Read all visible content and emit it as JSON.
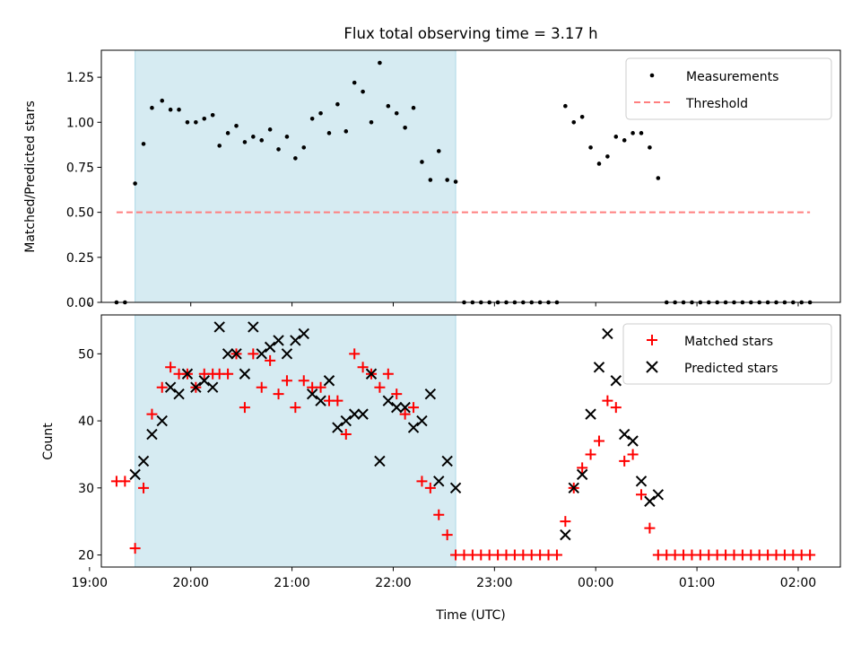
{
  "figure": {
    "title": "Flux total observing time = 3.17 h",
    "xlabel": "Time (UTC)"
  },
  "colors": {
    "span": "#add8e6",
    "measurement": "#000000",
    "threshold": "#ff7f7f",
    "matched": "#ff0000",
    "predicted": "#000000"
  },
  "chart_data": [
    {
      "type": "scatter",
      "ylabel": "Matched/Predicted stars",
      "xlim": [
        "19:07",
        "02:25"
      ],
      "ylim": [
        0,
        1.4
      ],
      "x_ticks": [
        "19:00",
        "20:00",
        "21:00",
        "22:00",
        "23:00",
        "00:00",
        "01:00",
        "02:00"
      ],
      "y_ticks": [
        "0.00",
        "0.25",
        "0.50",
        "0.75",
        "1.00",
        "1.25"
      ],
      "highlight_span": [
        "19:27",
        "22:37"
      ],
      "legend_position": "upper right",
      "series": [
        {
          "name": "Measurements",
          "marker": "dot",
          "points": [
            [
              "19:16",
              0
            ],
            [
              "19:21",
              0
            ],
            [
              "19:27",
              0.66
            ],
            [
              "19:32",
              0.88
            ],
            [
              "19:37",
              1.08
            ],
            [
              "19:43",
              1.12
            ],
            [
              "19:48",
              1.07
            ],
            [
              "19:53",
              1.07
            ],
            [
              "19:58",
              1.0
            ],
            [
              "20:03",
              1.0
            ],
            [
              "20:08",
              1.02
            ],
            [
              "20:13",
              1.04
            ],
            [
              "20:17",
              0.87
            ],
            [
              "20:22",
              0.94
            ],
            [
              "20:27",
              0.98
            ],
            [
              "20:32",
              0.89
            ],
            [
              "20:37",
              0.92
            ],
            [
              "20:42",
              0.9
            ],
            [
              "20:47",
              0.96
            ],
            [
              "20:52",
              0.85
            ],
            [
              "20:57",
              0.92
            ],
            [
              "21:02",
              0.8
            ],
            [
              "21:07",
              0.86
            ],
            [
              "21:12",
              1.02
            ],
            [
              "21:17",
              1.05
            ],
            [
              "21:22",
              0.94
            ],
            [
              "21:27",
              1.1
            ],
            [
              "21:32",
              0.95
            ],
            [
              "21:37",
              1.22
            ],
            [
              "21:42",
              1.17
            ],
            [
              "21:47",
              1.0
            ],
            [
              "21:52",
              1.33
            ],
            [
              "21:57",
              1.09
            ],
            [
              "22:02",
              1.05
            ],
            [
              "22:07",
              0.97
            ],
            [
              "22:12",
              1.08
            ],
            [
              "22:17",
              0.78
            ],
            [
              "22:22",
              0.68
            ],
            [
              "22:27",
              0.84
            ],
            [
              "22:32",
              0.68
            ],
            [
              "22:37",
              0.67
            ],
            [
              "22:42",
              0
            ],
            [
              "22:47",
              0
            ],
            [
              "22:52",
              0
            ],
            [
              "22:57",
              0
            ],
            [
              "23:02",
              0
            ],
            [
              "23:07",
              0
            ],
            [
              "23:12",
              0
            ],
            [
              "23:17",
              0
            ],
            [
              "23:22",
              0
            ],
            [
              "23:27",
              0
            ],
            [
              "23:32",
              0
            ],
            [
              "23:37",
              0
            ],
            [
              "23:42",
              1.09
            ],
            [
              "23:47",
              1.0
            ],
            [
              "23:52",
              1.03
            ],
            [
              "23:57",
              0.86
            ],
            [
              "00:02",
              0.77
            ],
            [
              "00:07",
              0.81
            ],
            [
              "00:12",
              0.92
            ],
            [
              "00:17",
              0.9
            ],
            [
              "00:22",
              0.94
            ],
            [
              "00:27",
              0.94
            ],
            [
              "00:32",
              0.86
            ],
            [
              "00:37",
              0.69
            ],
            [
              "00:42",
              0
            ],
            [
              "00:47",
              0
            ],
            [
              "00:52",
              0
            ],
            [
              "00:57",
              0
            ],
            [
              "01:02",
              0
            ],
            [
              "01:07",
              0
            ],
            [
              "01:12",
              0
            ],
            [
              "01:17",
              0
            ],
            [
              "01:22",
              0
            ],
            [
              "01:27",
              0
            ],
            [
              "01:32",
              0
            ],
            [
              "01:37",
              0
            ],
            [
              "01:42",
              0
            ],
            [
              "01:47",
              0
            ],
            [
              "01:52",
              0
            ],
            [
              "01:57",
              0
            ],
            [
              "02:02",
              0
            ],
            [
              "02:07",
              0
            ]
          ]
        },
        {
          "name": "Threshold",
          "style": "dashed",
          "points": [
            [
              "19:16",
              0.5
            ],
            [
              "02:07",
              0.5
            ]
          ]
        }
      ]
    },
    {
      "type": "scatter",
      "ylabel": "Count",
      "xlim": [
        "19:07",
        "02:25"
      ],
      "ylim": [
        18.2,
        55.8
      ],
      "x_ticks": [
        "19:00",
        "20:00",
        "21:00",
        "22:00",
        "23:00",
        "00:00",
        "01:00",
        "02:00"
      ],
      "y_ticks": [
        "20",
        "30",
        "40",
        "50"
      ],
      "highlight_span": [
        "19:27",
        "22:37"
      ],
      "legend_position": "upper right",
      "series": [
        {
          "name": "Matched stars",
          "marker": "plus",
          "points": [
            [
              "19:16",
              31
            ],
            [
              "19:21",
              31
            ],
            [
              "19:27",
              21
            ],
            [
              "19:32",
              30
            ],
            [
              "19:37",
              41
            ],
            [
              "19:43",
              45
            ],
            [
              "19:48",
              48
            ],
            [
              "19:53",
              47
            ],
            [
              "19:58",
              47
            ],
            [
              "20:03",
              45
            ],
            [
              "20:08",
              47
            ],
            [
              "20:13",
              47
            ],
            [
              "20:17",
              47
            ],
            [
              "20:22",
              47
            ],
            [
              "20:27",
              50
            ],
            [
              "20:32",
              42
            ],
            [
              "20:37",
              50
            ],
            [
              "20:42",
              45
            ],
            [
              "20:47",
              49
            ],
            [
              "20:52",
              44
            ],
            [
              "20:57",
              46
            ],
            [
              "21:02",
              42
            ],
            [
              "21:07",
              46
            ],
            [
              "21:12",
              45
            ],
            [
              "21:17",
              45
            ],
            [
              "21:22",
              43
            ],
            [
              "21:27",
              43
            ],
            [
              "21:32",
              38
            ],
            [
              "21:37",
              50
            ],
            [
              "21:42",
              48
            ],
            [
              "21:47",
              47
            ],
            [
              "21:52",
              45
            ],
            [
              "21:57",
              47
            ],
            [
              "22:02",
              44
            ],
            [
              "22:07",
              41
            ],
            [
              "22:12",
              42
            ],
            [
              "22:17",
              31
            ],
            [
              "22:22",
              30
            ],
            [
              "22:27",
              26
            ],
            [
              "22:32",
              23
            ],
            [
              "22:37",
              20
            ],
            [
              "22:42",
              20
            ],
            [
              "22:47",
              20
            ],
            [
              "22:52",
              20
            ],
            [
              "22:57",
              20
            ],
            [
              "23:02",
              20
            ],
            [
              "23:07",
              20
            ],
            [
              "23:12",
              20
            ],
            [
              "23:17",
              20
            ],
            [
              "23:22",
              20
            ],
            [
              "23:27",
              20
            ],
            [
              "23:32",
              20
            ],
            [
              "23:37",
              20
            ],
            [
              "23:42",
              25
            ],
            [
              "23:47",
              30
            ],
            [
              "23:52",
              33
            ],
            [
              "23:57",
              35
            ],
            [
              "00:02",
              37
            ],
            [
              "00:07",
              43
            ],
            [
              "00:12",
              42
            ],
            [
              "00:17",
              34
            ],
            [
              "00:22",
              35
            ],
            [
              "00:27",
              29
            ],
            [
              "00:32",
              24
            ],
            [
              "00:37",
              20
            ],
            [
              "00:42",
              20
            ],
            [
              "00:47",
              20
            ],
            [
              "00:52",
              20
            ],
            [
              "00:57",
              20
            ],
            [
              "01:02",
              20
            ],
            [
              "01:07",
              20
            ],
            [
              "01:12",
              20
            ],
            [
              "01:17",
              20
            ],
            [
              "01:22",
              20
            ],
            [
              "01:27",
              20
            ],
            [
              "01:32",
              20
            ],
            [
              "01:37",
              20
            ],
            [
              "01:42",
              20
            ],
            [
              "01:47",
              20
            ],
            [
              "01:52",
              20
            ],
            [
              "01:57",
              20
            ],
            [
              "02:02",
              20
            ],
            [
              "02:07",
              20
            ]
          ]
        },
        {
          "name": "Predicted stars",
          "marker": "x",
          "points": [
            [
              "19:27",
              32
            ],
            [
              "19:32",
              34
            ],
            [
              "19:37",
              38
            ],
            [
              "19:43",
              40
            ],
            [
              "19:48",
              45
            ],
            [
              "19:53",
              44
            ],
            [
              "19:58",
              47
            ],
            [
              "20:03",
              45
            ],
            [
              "20:08",
              46
            ],
            [
              "20:13",
              45
            ],
            [
              "20:17",
              54
            ],
            [
              "20:22",
              50
            ],
            [
              "20:27",
              50
            ],
            [
              "20:32",
              47
            ],
            [
              "20:37",
              54
            ],
            [
              "20:42",
              50
            ],
            [
              "20:47",
              51
            ],
            [
              "20:52",
              52
            ],
            [
              "20:57",
              50
            ],
            [
              "21:02",
              52
            ],
            [
              "21:07",
              53
            ],
            [
              "21:12",
              44
            ],
            [
              "21:17",
              43
            ],
            [
              "21:22",
              46
            ],
            [
              "21:27",
              39
            ],
            [
              "21:32",
              40
            ],
            [
              "21:37",
              41
            ],
            [
              "21:42",
              41
            ],
            [
              "21:47",
              47
            ],
            [
              "21:52",
              34
            ],
            [
              "21:57",
              43
            ],
            [
              "22:02",
              42
            ],
            [
              "22:07",
              42
            ],
            [
              "22:12",
              39
            ],
            [
              "22:17",
              40
            ],
            [
              "22:22",
              44
            ],
            [
              "22:27",
              31
            ],
            [
              "22:32",
              34
            ],
            [
              "22:37",
              30
            ],
            [
              "23:42",
              23
            ],
            [
              "23:47",
              30
            ],
            [
              "23:52",
              32
            ],
            [
              "23:57",
              41
            ],
            [
              "00:02",
              48
            ],
            [
              "00:07",
              53
            ],
            [
              "00:12",
              46
            ],
            [
              "00:17",
              38
            ],
            [
              "00:22",
              37
            ],
            [
              "00:27",
              31
            ],
            [
              "00:32",
              28
            ],
            [
              "00:37",
              29
            ]
          ]
        }
      ]
    }
  ]
}
